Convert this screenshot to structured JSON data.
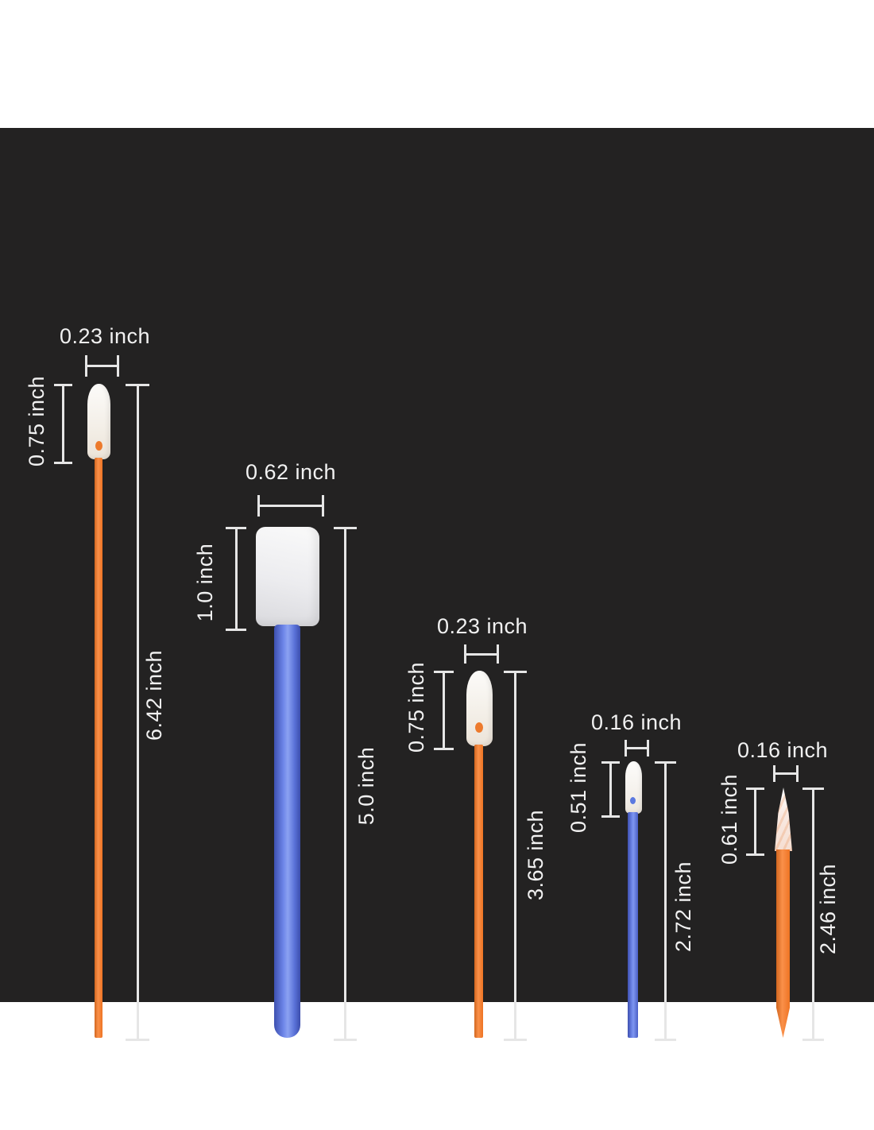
{
  "canvas": {
    "page_background": "#ffffff",
    "panel_background": "#232222",
    "dimension_line_color": "#e6e6e6",
    "label_text_color": "#f1f1f1"
  },
  "swabs": [
    {
      "name": "long round-tip foam swab",
      "stick_color": "#ee7424",
      "tip_color": "#f2ede5",
      "width_label": "0.23 inch",
      "tip_label": "0.75 inch",
      "total_label": "6.42 inch"
    },
    {
      "name": "rectangular-head foam swab",
      "stick_color": "#5a72d8",
      "tip_color": "#ececef",
      "width_label": "0.62 inch",
      "tip_label": "1.0 inch",
      "total_label": "5.0 inch"
    },
    {
      "name": "medium round-tip foam swab",
      "stick_color": "#ee7424",
      "tip_color": "#f2ede5",
      "width_label": "0.23 inch",
      "tip_label": "0.75 inch",
      "total_label": "3.65 inch"
    },
    {
      "name": "small round-tip foam swab",
      "stick_color": "#5b79e0",
      "tip_color": "#f3efe9",
      "width_label": "0.16 inch",
      "tip_label": "0.51 inch",
      "total_label": "2.72 inch"
    },
    {
      "name": "pointed-tip foam swab",
      "stick_color": "#ee7424",
      "tip_color": "#f9e9e1",
      "width_label": "0.16 inch",
      "tip_label": "0.61 inch",
      "total_label": "2.46 inch"
    }
  ]
}
